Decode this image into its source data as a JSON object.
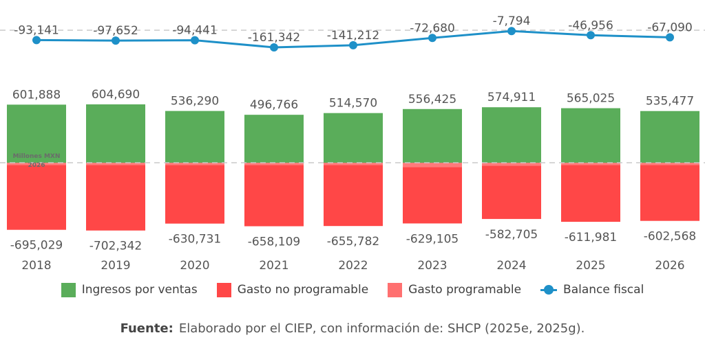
{
  "chart_data": {
    "type": "bar",
    "categories": [
      "2018",
      "2019",
      "2020",
      "2021",
      "2022",
      "2023",
      "2024",
      "2025",
      "2026"
    ],
    "series": [
      {
        "name": "Ingresos por ventas",
        "kind": "bar",
        "color": "#5aad5a",
        "values": [
          601888,
          604690,
          536290,
          496766,
          514570,
          556425,
          574911,
          565025,
          535477
        ]
      },
      {
        "name": "Gasto no programable",
        "kind": "bar",
        "color": "#ff4747",
        "values": [
          -25000,
          -25000,
          -25000,
          -25000,
          -25000,
          -45000,
          -30000,
          -25000,
          -25000
        ]
      },
      {
        "name": "Gasto programable",
        "kind": "bar",
        "color": "#ff7070",
        "values": [
          -670029,
          -677342,
          -605731,
          -633109,
          -630782,
          -584105,
          -552705,
          -586981,
          -577568
        ]
      },
      {
        "name": "Balance fiscal",
        "kind": "line",
        "color": "#1e90c8",
        "values": [
          -93141,
          -97652,
          -94441,
          -161342,
          -141212,
          -72680,
          -7794,
          -46956,
          -67090
        ]
      }
    ],
    "bar_top_labels": [
      "601,888",
      "604,690",
      "536,290",
      "496,766",
      "514,570",
      "556,425",
      "574,911",
      "565,025",
      "535,477"
    ],
    "bar_bottom_labels": [
      "-695,029",
      "-702,342",
      "-630,731",
      "-658,109",
      "-655,782",
      "-629,105",
      "-582,705",
      "-611,981",
      "-602,568"
    ],
    "line_labels": [
      "-93,141",
      "-97,652",
      "-94,441",
      "-161,342",
      "-141,212",
      "-72,680",
      "-7,794",
      "-46,956",
      "-67,090"
    ],
    "axis_label": [
      "Millones MXN",
      "2026"
    ],
    "ylim": [
      -702342,
      604690
    ],
    "grid": "dashed zero lines"
  },
  "legend": {
    "items": [
      {
        "label": "Ingresos por ventas",
        "color": "#5aad5a"
      },
      {
        "label": "Gasto no programable",
        "color": "#ff4747"
      },
      {
        "label": "Gasto programable",
        "color": "#ff7070"
      },
      {
        "label": "Balance fiscal",
        "color": "#1e90c8"
      }
    ]
  },
  "source": {
    "prefix": "Fuente:",
    "text": "Elaborado por el CIEP, con información de: SHCP (2025e, 2025g)."
  }
}
